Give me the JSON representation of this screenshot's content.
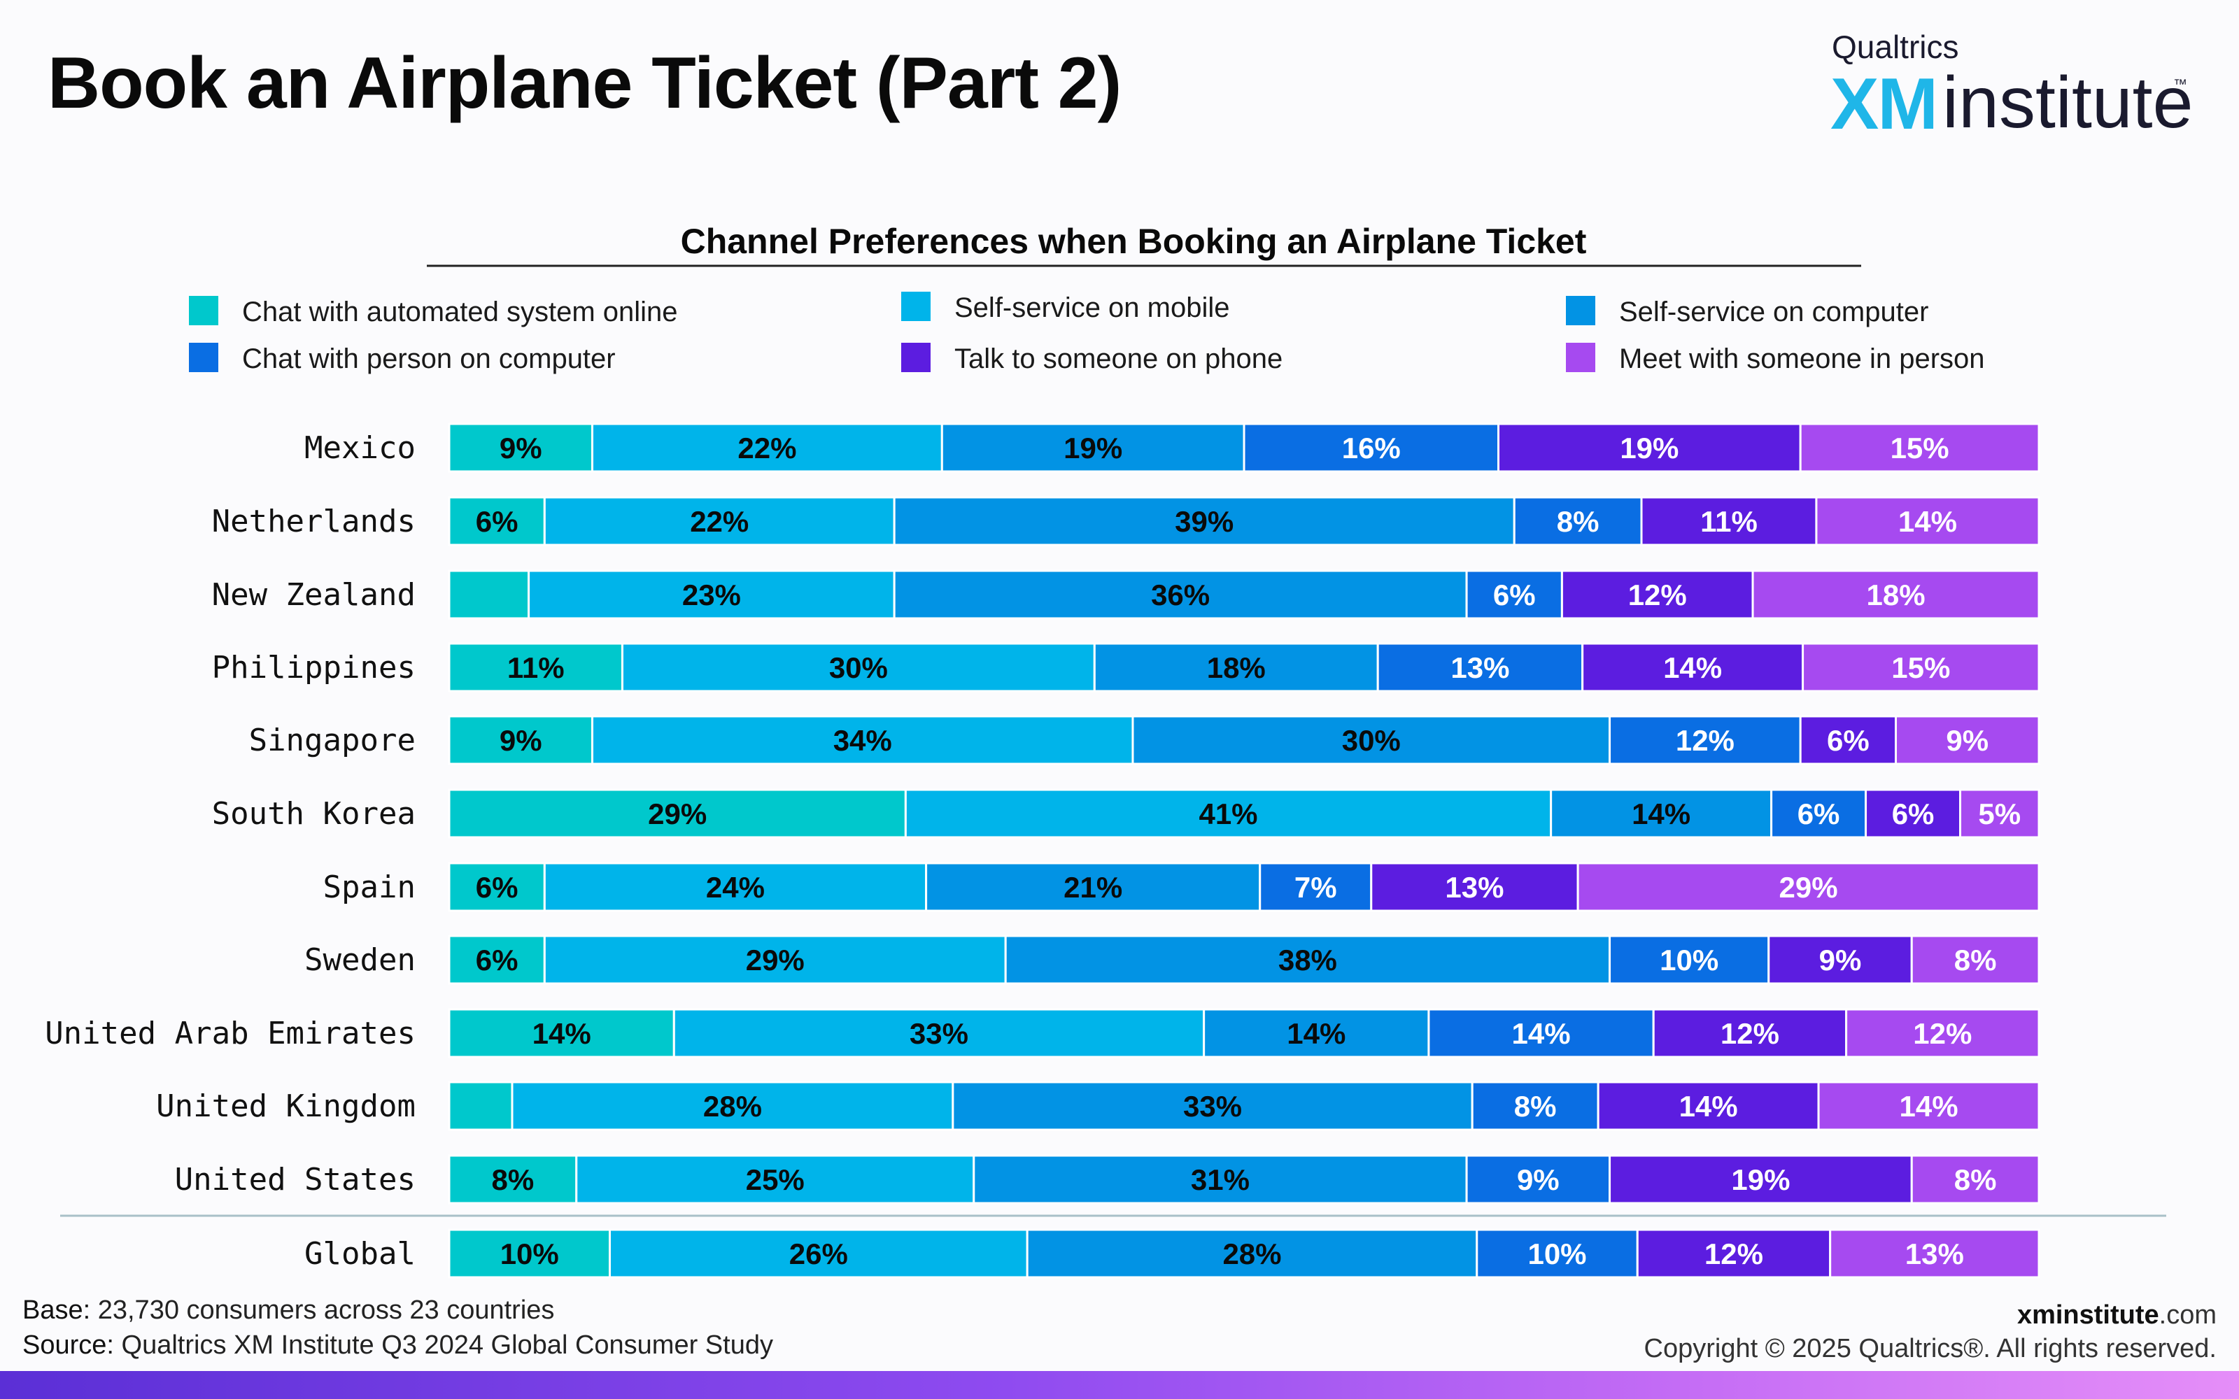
{
  "page": {
    "title": "Book an Airplane Ticket (Part 2)",
    "logo": {
      "top": "Qualtrics",
      "xm": "XM",
      "institute": "institute",
      "tm": "™"
    }
  },
  "footer": {
    "base_label": "Base:",
    "base_text": "23,730 consumers across 23 countries",
    "source_label": "Source:",
    "source_text": "Qualtrics XM Institute Q3 2024 Global Consumer Study",
    "site_bold": "xminstitute",
    "site_rest": ".com",
    "copyright": "Copyright © 2025 Qualtrics®. All rights reserved."
  },
  "chart_data": {
    "type": "bar",
    "orientation": "horizontal",
    "stacked": true,
    "title": "Channel Preferences when Booking an Airplane Ticket",
    "xlim": [
      0,
      100
    ],
    "unit": "%",
    "legend_position": "top",
    "categories": [
      "Mexico",
      "Netherlands",
      "New Zealand",
      "Philippines",
      "Singapore",
      "South Korea",
      "Spain",
      "Sweden",
      "United Arab Emirates",
      "United Kingdom",
      "United States",
      "Global"
    ],
    "series": [
      {
        "name": "Chat with automated system online",
        "color": "#00c8cc",
        "text_color": "#0a0a0a",
        "values": [
          9,
          6,
          5,
          11,
          9,
          29,
          6,
          6,
          14,
          4,
          8,
          10
        ],
        "labels": [
          "9%",
          "6%",
          "",
          "11%",
          "9%",
          "29%",
          "6%",
          "6%",
          "14%",
          "",
          "8%",
          "10%"
        ]
      },
      {
        "name": "Self-service on mobile",
        "color": "#00b4ea",
        "text_color": "#0a0a0a",
        "values": [
          22,
          22,
          23,
          30,
          34,
          41,
          24,
          29,
          33,
          28,
          25,
          26
        ],
        "labels": [
          "22%",
          "22%",
          "23%",
          "30%",
          "34%",
          "41%",
          "24%",
          "29%",
          "33%",
          "28%",
          "25%",
          "26%"
        ]
      },
      {
        "name": "Self-service on computer",
        "color": "#0293e4",
        "text_color": "#0a0a0a",
        "values": [
          19,
          39,
          36,
          18,
          30,
          14,
          21,
          38,
          14,
          33,
          31,
          28
        ],
        "labels": [
          "19%",
          "39%",
          "36%",
          "18%",
          "30%",
          "14%",
          "21%",
          "38%",
          "14%",
          "33%",
          "31%",
          "28%"
        ]
      },
      {
        "name": "Chat with person on computer",
        "color": "#0a6ee3",
        "text_color": "#ffffff",
        "values": [
          16,
          8,
          6,
          13,
          12,
          6,
          7,
          10,
          14,
          8,
          9,
          10
        ],
        "labels": [
          "16%",
          "8%",
          "6%",
          "13%",
          "12%",
          "6%",
          "7%",
          "10%",
          "14%",
          "8%",
          "9%",
          "10%"
        ]
      },
      {
        "name": "Talk to someone on phone",
        "color": "#5c1de0",
        "text_color": "#ffffff",
        "values": [
          19,
          11,
          12,
          14,
          6,
          6,
          13,
          9,
          12,
          14,
          19,
          12
        ],
        "labels": [
          "19%",
          "11%",
          "12%",
          "14%",
          "6%",
          "6%",
          "13%",
          "9%",
          "12%",
          "14%",
          "19%",
          "12%"
        ]
      },
      {
        "name": "Meet with someone in person",
        "color": "#a64af0",
        "text_color": "#ffffff",
        "values": [
          15,
          14,
          18,
          15,
          9,
          5,
          29,
          8,
          12,
          14,
          8,
          13
        ],
        "labels": [
          "15%",
          "14%",
          "18%",
          "15%",
          "9%",
          "5%",
          "29%",
          "8%",
          "12%",
          "14%",
          "8%",
          "13%"
        ]
      }
    ]
  }
}
